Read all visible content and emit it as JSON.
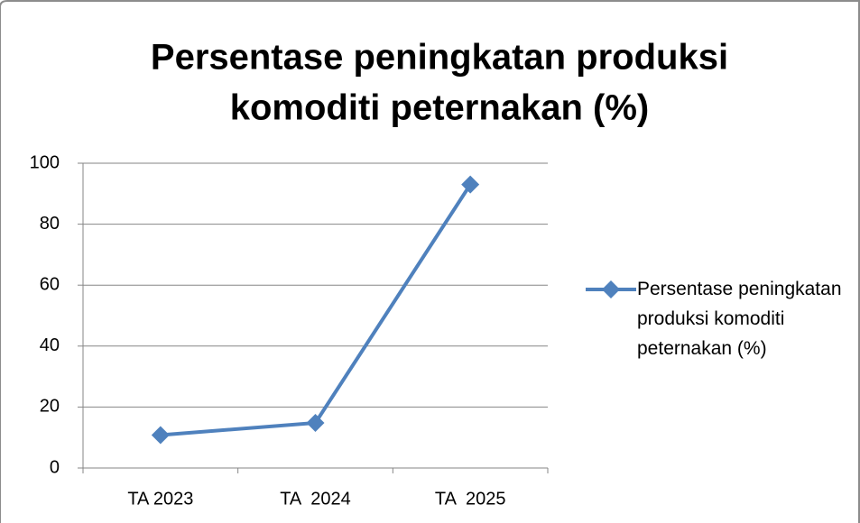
{
  "chart_data": {
    "type": "line",
    "title": [
      "Persentase peningkatan produksi",
      "komoditi peternakan (%)"
    ],
    "categories": [
      "TA 2023",
      "TA  2024",
      "TA  2025"
    ],
    "series": [
      {
        "name": "Persentase peningkatan produksi komoditi peternakan (%)",
        "color": "#4f81bd",
        "values": [
          10.8,
          14.8,
          93
        ]
      }
    ],
    "ylim": [
      0,
      100
    ],
    "yticks": [
      0,
      20,
      40,
      60,
      80,
      100
    ],
    "grid": true,
    "legend": "right"
  }
}
